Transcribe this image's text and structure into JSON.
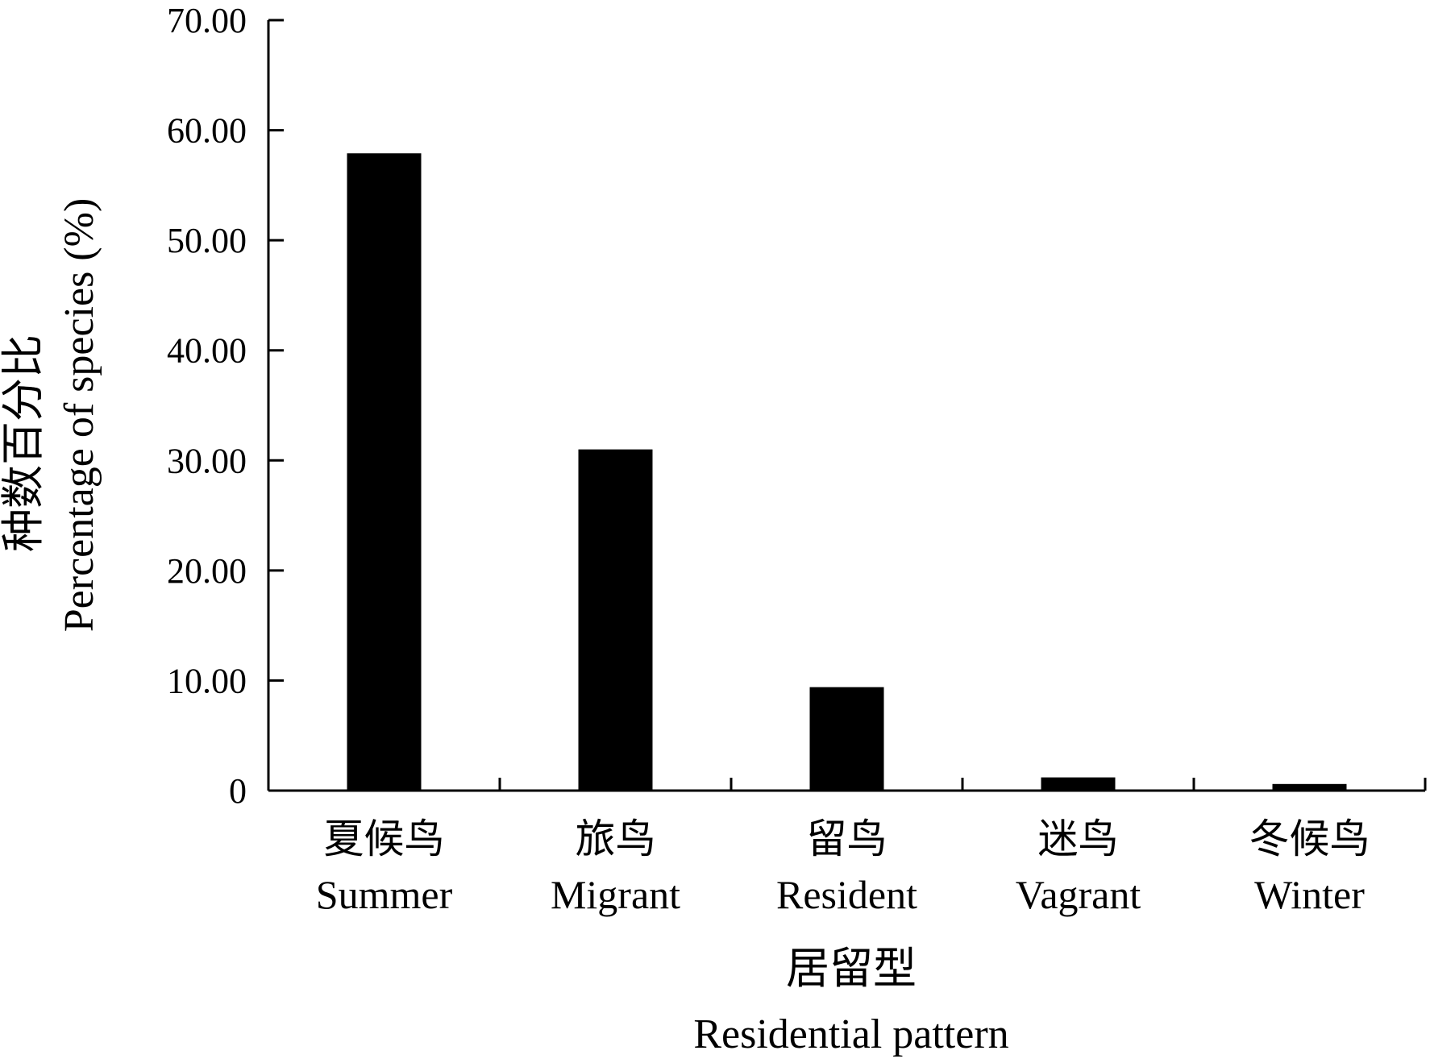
{
  "chart_data": {
    "type": "bar",
    "categories": [
      {
        "cn": "夏候鸟",
        "en": "Summer"
      },
      {
        "cn": "旅鸟",
        "en": "Migrant"
      },
      {
        "cn": "留鸟",
        "en": "Resident"
      },
      {
        "cn": "迷鸟",
        "en": "Vagrant"
      },
      {
        "cn": "冬候鸟",
        "en": "Winter"
      }
    ],
    "values": [
      57.9,
      31.0,
      9.4,
      1.2,
      0.6
    ],
    "bar_color": "#000000",
    "ylim": [
      0,
      70
    ],
    "yticks": [
      "0",
      "10.00",
      "20.00",
      "30.00",
      "40.00",
      "50.00",
      "60.00",
      "70.00"
    ],
    "xlabel": {
      "cn": "居留型",
      "en": "Residential pattern"
    },
    "ylabel": {
      "cn": "种数百分比",
      "en": "Percentage of species (%)"
    },
    "grid": false,
    "legend": "none"
  }
}
